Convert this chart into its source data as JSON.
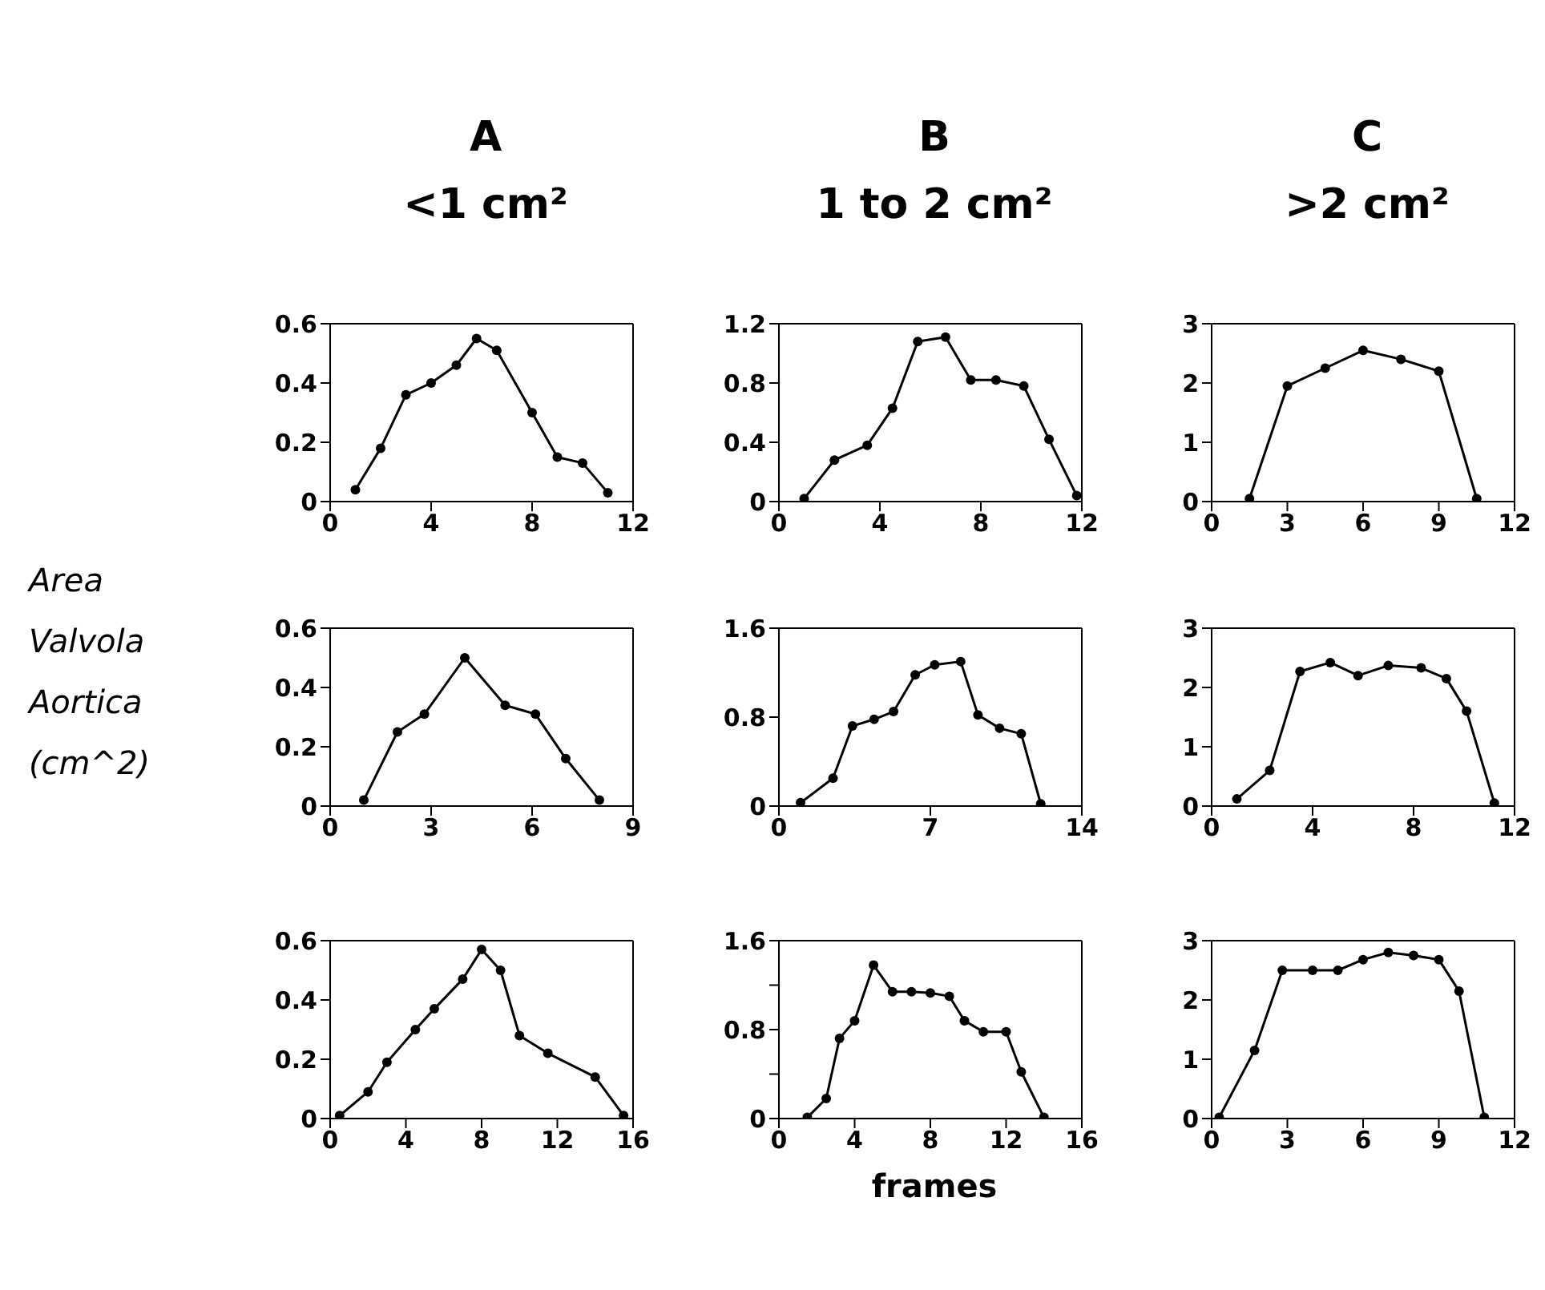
{
  "chart_data": [
    {
      "type": "line",
      "title": "A",
      "subtitle": "<1 cm²",
      "x": [
        1,
        2,
        3,
        4,
        5,
        5.8,
        6.6,
        8,
        9,
        10,
        11
      ],
      "values": [
        0.04,
        0.18,
        0.36,
        0.4,
        0.46,
        0.55,
        0.51,
        0.3,
        0.15,
        0.13,
        0.03
      ],
      "color": "#000000",
      "marker": "circle",
      "xlim": [
        0,
        12
      ],
      "xticks": [
        0,
        4,
        8,
        12
      ],
      "ylim": [
        0,
        0.6
      ],
      "yticks": [
        0,
        0.2,
        0.4,
        0.6
      ]
    },
    {
      "type": "line",
      "title": "B",
      "subtitle": "1 to 2 cm²",
      "x": [
        1,
        2.2,
        3.5,
        4.5,
        5.5,
        6.6,
        7.6,
        8.6,
        9.7,
        10.7,
        11.8
      ],
      "values": [
        0.02,
        0.28,
        0.38,
        0.63,
        1.08,
        1.11,
        0.82,
        0.82,
        0.78,
        0.42,
        0.04
      ],
      "color": "#000000",
      "marker": "circle",
      "xlim": [
        0,
        12
      ],
      "xticks": [
        0,
        4,
        8,
        12
      ],
      "ylim": [
        0,
        1.2
      ],
      "yticks": [
        0,
        0.4,
        0.8,
        1.2
      ]
    },
    {
      "type": "line",
      "title": "C",
      "subtitle": ">2 cm²",
      "x": [
        1.5,
        3,
        4.5,
        6,
        7.5,
        9,
        10.5
      ],
      "values": [
        0.05,
        1.95,
        2.25,
        2.55,
        2.4,
        2.2,
        0.05
      ],
      "color": "#000000",
      "marker": "circle",
      "xlim": [
        0,
        12
      ],
      "xticks": [
        0,
        3,
        6,
        9,
        12
      ],
      "ylim": [
        0,
        3
      ],
      "yticks": [
        0,
        1,
        2,
        3
      ]
    },
    {
      "type": "line",
      "ylabel": "Area Valvola Aortica (cm^2)",
      "x": [
        1,
        2,
        2.8,
        4,
        5.2,
        6.1,
        7,
        8
      ],
      "values": [
        0.02,
        0.25,
        0.31,
        0.5,
        0.34,
        0.31,
        0.16,
        0.02
      ],
      "color": "#000000",
      "marker": "circle",
      "xlim": [
        0,
        9
      ],
      "xticks": [
        0,
        3,
        6,
        9
      ],
      "ylim": [
        0,
        0.6
      ],
      "yticks": [
        0,
        0.2,
        0.4,
        0.6
      ]
    },
    {
      "type": "line",
      "x": [
        1,
        2.5,
        3.4,
        4.4,
        5.3,
        6.3,
        7.2,
        8.4,
        9.2,
        10.2,
        11.2,
        12.1
      ],
      "values": [
        0.03,
        0.25,
        0.72,
        0.78,
        0.85,
        1.18,
        1.27,
        1.3,
        0.82,
        0.7,
        0.65,
        0.02
      ],
      "color": "#000000",
      "marker": "circle",
      "xlim": [
        0,
        14
      ],
      "xticks": [
        0,
        7,
        14
      ],
      "ylim": [
        0,
        1.6
      ],
      "yticks": [
        0,
        0.8,
        1.6
      ]
    },
    {
      "type": "line",
      "x": [
        1,
        2.3,
        3.5,
        4.7,
        5.8,
        7,
        8.3,
        9.3,
        10.1,
        11.2
      ],
      "values": [
        0.12,
        0.6,
        2.27,
        2.42,
        2.2,
        2.37,
        2.33,
        2.15,
        1.6,
        0.05
      ],
      "color": "#000000",
      "marker": "circle",
      "xlim": [
        0,
        12
      ],
      "xticks": [
        0,
        4,
        8,
        12
      ],
      "ylim": [
        0,
        3
      ],
      "yticks": [
        0,
        1,
        2,
        3
      ]
    },
    {
      "type": "line",
      "x": [
        0.5,
        2,
        3,
        4.5,
        5.5,
        7,
        8,
        9,
        10,
        11.5,
        14,
        15.5
      ],
      "values": [
        0.01,
        0.09,
        0.19,
        0.3,
        0.37,
        0.47,
        0.57,
        0.5,
        0.28,
        0.22,
        0.14,
        0.01
      ],
      "color": "#000000",
      "marker": "circle",
      "xlim": [
        0,
        16
      ],
      "xticks": [
        0,
        4,
        8,
        12,
        16
      ],
      "ylim": [
        0,
        0.6
      ],
      "yticks": [
        0,
        0.2,
        0.4,
        0.6
      ]
    },
    {
      "type": "line",
      "xlabel": "frames",
      "x": [
        1.5,
        2.5,
        3.2,
        4,
        5,
        6,
        7,
        8,
        9,
        9.8,
        10.8,
        12,
        12.8,
        14
      ],
      "values": [
        0.01,
        0.18,
        0.72,
        0.88,
        1.38,
        1.14,
        1.14,
        1.13,
        1.1,
        0.88,
        0.78,
        0.78,
        0.42,
        0.01
      ],
      "color": "#000000",
      "marker": "circle",
      "xlim": [
        0,
        16
      ],
      "xticks": [
        0,
        4,
        8,
        12,
        16
      ],
      "ylim": [
        0,
        1.6
      ],
      "yticks": [
        0,
        {
          "value": 0.4,
          "label": null
        },
        0.8,
        {
          "value": 1.2,
          "label": null
        },
        1.6
      ]
    },
    {
      "type": "line",
      "x": [
        0.3,
        1.7,
        2.8,
        4,
        5,
        6,
        7,
        8,
        9,
        9.8,
        10.8
      ],
      "values": [
        0.02,
        1.15,
        2.5,
        2.5,
        2.5,
        2.68,
        2.8,
        2.75,
        2.68,
        2.15,
        0.02
      ],
      "color": "#000000",
      "marker": "circle",
      "xlim": [
        0,
        12
      ],
      "xticks": [
        0,
        3,
        6,
        9,
        12
      ],
      "ylim": [
        0,
        3
      ],
      "yticks": [
        0,
        1,
        2,
        3
      ]
    }
  ]
}
